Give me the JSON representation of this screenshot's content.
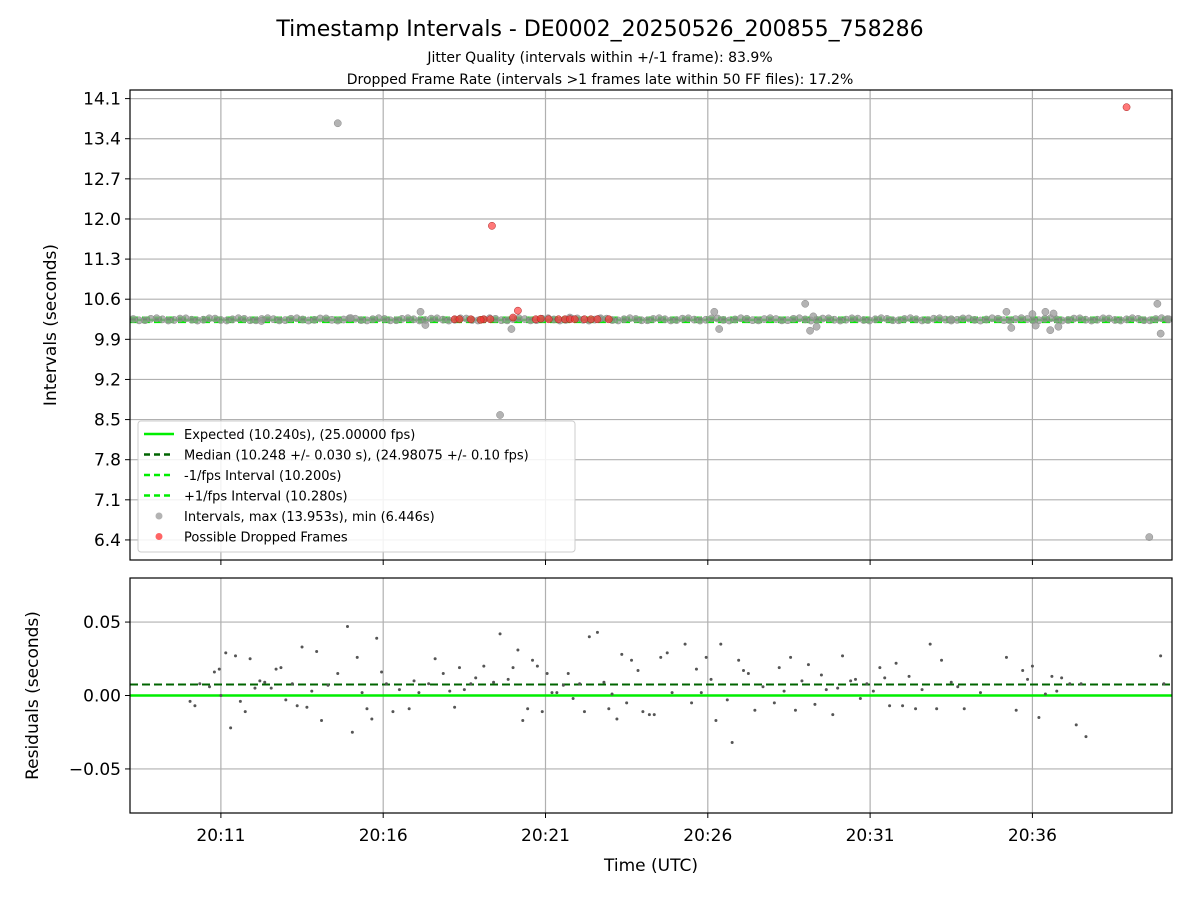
{
  "title": "Timestamp Intervals - DE0002_20250526_200855_758286",
  "subtitle_1": "Jitter Quality (intervals within +/-1 frame): 83.9%",
  "subtitle_2": "Dropped Frame Rate (intervals >1 frames late within 50 FF files): 17.2%",
  "colors": {
    "expected": "#00ee00",
    "median": "#006400",
    "interval_band": "#00ee00",
    "intervals": "#9a9a9a",
    "dropped": "#ff3030",
    "residuals": "#555555",
    "grid": "#b0b0b0"
  },
  "chart_data": [
    {
      "type": "scatter",
      "ylabel": "Intervals (seconds)",
      "xlabel": "",
      "x_ticks": [
        "20:11",
        "20:16",
        "20:21",
        "20:26",
        "20:31",
        "20:36"
      ],
      "x_tick_minutes": [
        671,
        676,
        681,
        686,
        691,
        696
      ],
      "xlim_minutes": [
        668.2,
        700.3
      ],
      "y_ticks": [
        "6.4",
        "7.1",
        "7.8",
        "8.5",
        "9.2",
        "9.9",
        "10.6",
        "11.3",
        "12.0",
        "12.7",
        "13.4",
        "14.1"
      ],
      "ylim": [
        6.05,
        14.25
      ],
      "grid": true,
      "legend_position": "lower-left",
      "legend": [
        "Expected (10.240s), (25.00000 fps)",
        "Median (10.248 +/- 0.030 s), (24.98075 +/- 0.10 fps)",
        "-1/fps Interval (10.200s)",
        "+1/fps Interval (10.280s)",
        "Intervals, max (13.953s), min (6.446s)",
        "Possible Dropped Frames"
      ],
      "reference_lines": {
        "expected": 10.24,
        "median": 10.248,
        "minus_one_frame": 10.2,
        "plus_one_frame": 10.28
      },
      "base_interval": 10.248,
      "series": [
        {
          "name": "Intervals, max (13.953s), min (6.446s)",
          "points": [
            [
              672.25,
              10.22
            ],
            [
              674.6,
              13.67
            ],
            [
              675.0,
              10.27
            ],
            [
              677.15,
              10.38
            ],
            [
              677.3,
              10.15
            ],
            [
              679.6,
              8.58
            ],
            [
              679.95,
              10.08
            ],
            [
              681.75,
              10.28
            ],
            [
              682.65,
              10.26
            ],
            [
              686.2,
              10.38
            ],
            [
              686.35,
              10.08
            ],
            [
              689.0,
              10.52
            ],
            [
              689.15,
              10.05
            ],
            [
              689.35,
              10.12
            ],
            [
              689.25,
              10.3
            ],
            [
              693.5,
              10.25
            ],
            [
              695.2,
              10.38
            ],
            [
              695.35,
              10.1
            ],
            [
              696.0,
              10.34
            ],
            [
              696.1,
              10.14
            ],
            [
              696.4,
              10.38
            ],
            [
              696.55,
              10.06
            ],
            [
              696.65,
              10.35
            ],
            [
              696.8,
              10.12
            ],
            [
              699.6,
              6.45
            ],
            [
              699.85,
              10.52
            ],
            [
              699.95,
              10.0
            ],
            [
              700.2,
              10.25
            ]
          ]
        },
        {
          "name": "Possible Dropped Frames",
          "points": [
            [
              679.35,
              11.88
            ],
            [
              698.9,
              13.95
            ],
            [
              680.15,
              10.4
            ],
            [
              680.0,
              10.28
            ],
            [
              679.0,
              10.24
            ],
            [
              680.7,
              10.25
            ],
            [
              680.85,
              10.26
            ]
          ]
        }
      ],
      "band_points_start_minute": 668.3,
      "band_points_step_minutes": 0.18,
      "dropped_cluster_minutes": [
        678.2,
        678.35,
        678.7,
        679.1,
        679.3,
        681.1,
        681.4,
        681.6,
        681.75,
        681.9,
        682.2,
        682.4,
        682.6,
        682.95
      ],
      "dropped_cluster_value": 10.25
    },
    {
      "type": "scatter",
      "ylabel": "Residuals (seconds)",
      "xlabel": "Time (UTC)",
      "x_ticks": [
        "20:11",
        "20:16",
        "20:21",
        "20:26",
        "20:31",
        "20:36"
      ],
      "x_tick_minutes": [
        671,
        676,
        681,
        686,
        691,
        696
      ],
      "xlim_minutes": [
        668.2,
        700.3
      ],
      "y_ticks": [
        "0.05",
        "0.00",
        "−0.05"
      ],
      "y_tick_values": [
        0.05,
        0.0,
        -0.05
      ],
      "ylim": [
        -0.08,
        0.08
      ],
      "grid": true,
      "reference_lines": {
        "expected": 0.0,
        "median": 0.0075
      },
      "series": [
        {
          "name": "",
          "points": [
            [
              670.05,
              -0.004
            ],
            [
              670.2,
              -0.007
            ],
            [
              670.35,
              0.008
            ],
            [
              670.65,
              0.006
            ],
            [
              670.8,
              0.016
            ],
            [
              670.95,
              0.018
            ],
            [
              671.0,
              0.0
            ],
            [
              671.15,
              0.029
            ],
            [
              671.3,
              -0.022
            ],
            [
              671.45,
              0.027
            ],
            [
              671.6,
              -0.004
            ],
            [
              671.75,
              -0.011
            ],
            [
              671.9,
              0.025
            ],
            [
              672.05,
              0.005
            ],
            [
              672.2,
              0.01
            ],
            [
              672.35,
              0.009
            ],
            [
              672.55,
              0.005
            ],
            [
              672.7,
              0.018
            ],
            [
              672.85,
              0.019
            ],
            [
              673.0,
              -0.003
            ],
            [
              673.2,
              0.008
            ],
            [
              673.35,
              -0.007
            ],
            [
              673.5,
              0.033
            ],
            [
              673.65,
              -0.008
            ],
            [
              673.8,
              0.003
            ],
            [
              673.95,
              0.03
            ],
            [
              674.1,
              -0.017
            ],
            [
              674.3,
              0.007
            ],
            [
              674.6,
              0.015
            ],
            [
              674.9,
              0.047
            ],
            [
              675.05,
              -0.025
            ],
            [
              675.2,
              0.026
            ],
            [
              675.35,
              0.002
            ],
            [
              675.5,
              -0.009
            ],
            [
              675.65,
              -0.016
            ],
            [
              675.8,
              0.039
            ],
            [
              675.95,
              0.016
            ],
            [
              676.1,
              0.008
            ],
            [
              676.3,
              -0.011
            ],
            [
              676.5,
              0.004
            ],
            [
              676.8,
              -0.009
            ],
            [
              676.95,
              0.01
            ],
            [
              677.1,
              0.002
            ],
            [
              677.4,
              0.008
            ],
            [
              677.6,
              0.025
            ],
            [
              677.85,
              0.015
            ],
            [
              678.05,
              0.003
            ],
            [
              678.2,
              -0.008
            ],
            [
              678.35,
              0.019
            ],
            [
              678.5,
              0.004
            ],
            [
              678.7,
              0.008
            ],
            [
              678.85,
              0.012
            ],
            [
              679.1,
              0.02
            ],
            [
              679.4,
              0.009
            ],
            [
              679.6,
              0.042
            ],
            [
              679.85,
              0.011
            ],
            [
              680.0,
              0.019
            ],
            [
              680.15,
              0.031
            ],
            [
              680.3,
              -0.017
            ],
            [
              680.45,
              -0.009
            ],
            [
              680.6,
              0.024
            ],
            [
              680.75,
              0.02
            ],
            [
              680.9,
              -0.011
            ],
            [
              681.05,
              0.015
            ],
            [
              681.2,
              0.002
            ],
            [
              681.35,
              0.002
            ],
            [
              681.55,
              0.007
            ],
            [
              681.7,
              0.015
            ],
            [
              681.85,
              -0.002
            ],
            [
              682.05,
              0.008
            ],
            [
              682.2,
              -0.011
            ],
            [
              682.35,
              0.04
            ],
            [
              682.6,
              0.043
            ],
            [
              682.8,
              0.009
            ],
            [
              682.95,
              -0.009
            ],
            [
              683.05,
              0.001
            ],
            [
              683.2,
              -0.016
            ],
            [
              683.35,
              0.028
            ],
            [
              683.5,
              -0.005
            ],
            [
              683.65,
              0.024
            ],
            [
              683.85,
              0.017
            ],
            [
              684.0,
              -0.011
            ],
            [
              684.2,
              -0.013
            ],
            [
              684.35,
              -0.013
            ],
            [
              684.55,
              0.026
            ],
            [
              684.75,
              0.029
            ],
            [
              684.9,
              0.002
            ],
            [
              685.3,
              0.035
            ],
            [
              685.5,
              -0.005
            ],
            [
              685.65,
              0.018
            ],
            [
              685.8,
              0.002
            ],
            [
              685.95,
              0.026
            ],
            [
              686.1,
              0.011
            ],
            [
              686.25,
              -0.017
            ],
            [
              686.4,
              0.035
            ],
            [
              686.6,
              -0.003
            ],
            [
              686.75,
              -0.032
            ],
            [
              686.95,
              0.024
            ],
            [
              687.1,
              0.017
            ],
            [
              687.25,
              0.015
            ],
            [
              687.45,
              -0.01
            ],
            [
              687.7,
              0.006
            ],
            [
              688.05,
              -0.005
            ],
            [
              688.2,
              0.019
            ],
            [
              688.35,
              0.003
            ],
            [
              688.55,
              0.026
            ],
            [
              688.7,
              -0.01
            ],
            [
              688.9,
              0.01
            ],
            [
              689.1,
              0.021
            ],
            [
              689.3,
              -0.006
            ],
            [
              689.5,
              0.014
            ],
            [
              689.65,
              0.004
            ],
            [
              689.85,
              -0.013
            ],
            [
              690.0,
              0.005
            ],
            [
              690.15,
              0.027
            ],
            [
              690.4,
              0.01
            ],
            [
              690.55,
              0.011
            ],
            [
              690.7,
              -0.002
            ],
            [
              690.9,
              0.008
            ],
            [
              691.1,
              0.003
            ],
            [
              691.3,
              0.019
            ],
            [
              691.45,
              0.012
            ],
            [
              691.6,
              -0.007
            ],
            [
              691.8,
              0.022
            ],
            [
              692.0,
              -0.007
            ],
            [
              692.2,
              0.013
            ],
            [
              692.4,
              -0.009
            ],
            [
              692.6,
              0.004
            ],
            [
              692.85,
              0.035
            ],
            [
              693.05,
              -0.009
            ],
            [
              693.2,
              0.024
            ],
            [
              693.5,
              0.009
            ],
            [
              693.7,
              0.006
            ],
            [
              693.9,
              -0.009
            ],
            [
              694.4,
              0.002
            ],
            [
              695.2,
              0.026
            ],
            [
              695.5,
              -0.01
            ],
            [
              695.7,
              0.017
            ],
            [
              695.85,
              0.011
            ],
            [
              696.0,
              0.02
            ],
            [
              696.2,
              -0.015
            ],
            [
              696.4,
              0.001
            ],
            [
              696.6,
              0.013
            ],
            [
              696.75,
              0.003
            ],
            [
              696.9,
              0.012
            ],
            [
              697.15,
              0.008
            ],
            [
              697.35,
              -0.02
            ],
            [
              697.5,
              0.008
            ],
            [
              697.65,
              -0.028
            ],
            [
              699.95,
              0.027
            ],
            [
              700.05,
              0.008
            ]
          ]
        }
      ]
    }
  ]
}
